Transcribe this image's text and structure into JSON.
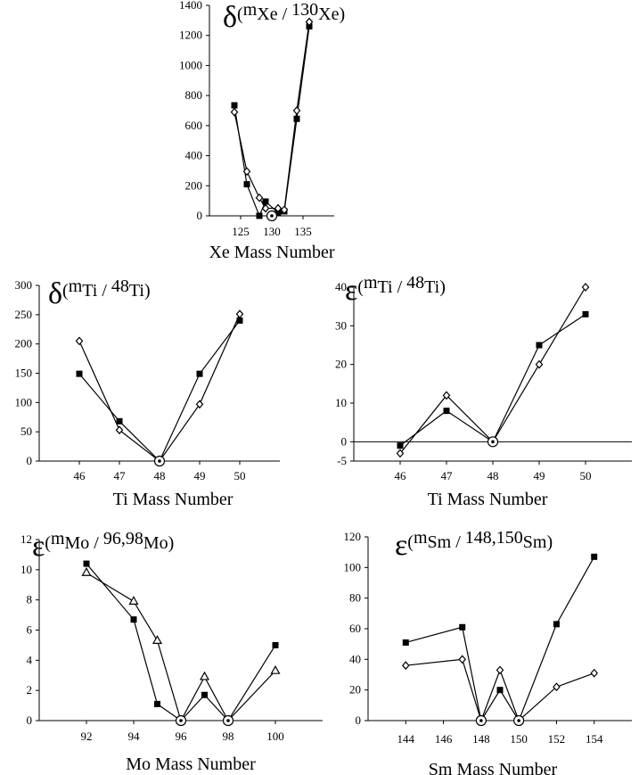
{
  "charts": [
    {
      "id": "xe",
      "type": "line",
      "title_symbol": "δ",
      "title_parts": [
        "(",
        "m",
        "Xe / ",
        "130",
        "Xe)"
      ],
      "xlabel": "Xe Mass Number",
      "xlim": [
        120,
        140
      ],
      "ylim": [
        0,
        1400
      ],
      "xticks": [
        125,
        130,
        135
      ],
      "yticks": [
        0,
        200,
        400,
        600,
        800,
        1000,
        1200,
        1400
      ],
      "reference_x": 130,
      "series": [
        {
          "marker": "square",
          "x": [
            124,
            126,
            128,
            129,
            131,
            132,
            134,
            136
          ],
          "y": [
            735,
            210,
            0,
            95,
            20,
            30,
            645,
            1260
          ]
        },
        {
          "marker": "diamond",
          "x": [
            124,
            126,
            128,
            129,
            131,
            132,
            134,
            136
          ],
          "y": [
            690,
            295,
            120,
            50,
            50,
            40,
            700,
            1290
          ]
        }
      ]
    },
    {
      "id": "ti_delta",
      "type": "line",
      "title_symbol": "δ",
      "title_parts": [
        "(",
        "m",
        "Ti / ",
        "48",
        "Ti)"
      ],
      "xlabel": "Ti Mass Number",
      "xlim": [
        45,
        51
      ],
      "ylim": [
        0,
        300
      ],
      "xticks": [
        46,
        47,
        48,
        49,
        50
      ],
      "yticks": [
        0,
        50,
        100,
        150,
        200,
        250,
        300
      ],
      "reference_x": 48,
      "series": [
        {
          "marker": "square",
          "x": [
            46,
            47,
            48,
            49,
            50
          ],
          "y": [
            149,
            68,
            0,
            149,
            240
          ]
        },
        {
          "marker": "diamond",
          "x": [
            46,
            47,
            48,
            49,
            50
          ],
          "y": [
            205,
            53,
            0,
            97,
            251
          ]
        }
      ]
    },
    {
      "id": "ti_eps",
      "type": "line",
      "title_symbol": "ε",
      "title_parts": [
        "(",
        "m",
        "Ti / ",
        "48",
        "Ti)"
      ],
      "xlabel": "Ti Mass Number",
      "xlim": [
        45,
        51
      ],
      "ylim": [
        -5,
        40
      ],
      "xticks": [
        46,
        47,
        48,
        49,
        50
      ],
      "yticks": [
        -5,
        0,
        10,
        20,
        30,
        40
      ],
      "zero_line": true,
      "reference_x": 48,
      "series": [
        {
          "marker": "square",
          "x": [
            46,
            47,
            48,
            49,
            50
          ],
          "y": [
            -1,
            8,
            0,
            25,
            33
          ]
        },
        {
          "marker": "diamond",
          "x": [
            46,
            47,
            48,
            49,
            50
          ],
          "y": [
            -3,
            12,
            0,
            20,
            40
          ]
        }
      ]
    },
    {
      "id": "mo",
      "type": "line",
      "title_symbol": "ε",
      "title_parts": [
        "(",
        "m",
        "Mo / ",
        "96,98",
        "Mo)"
      ],
      "xlabel": "Mo Mass Number",
      "xlim": [
        90,
        102
      ],
      "ylim": [
        0,
        12
      ],
      "xticks": [
        92,
        94,
        96,
        98,
        100
      ],
      "yticks": [
        0,
        2,
        4,
        6,
        8,
        10,
        12
      ],
      "reference_x": [
        96,
        98
      ],
      "series": [
        {
          "marker": "square",
          "x": [
            92,
            94,
            95,
            96,
            97,
            98,
            100
          ],
          "y": [
            10.4,
            6.7,
            1.1,
            0,
            1.7,
            0,
            5.0
          ]
        },
        {
          "marker": "triangle",
          "x": [
            92,
            94,
            95,
            96,
            97,
            98,
            100
          ],
          "y": [
            9.8,
            7.9,
            5.3,
            0,
            2.9,
            0,
            3.3
          ]
        }
      ]
    },
    {
      "id": "sm",
      "type": "line",
      "title_symbol": "ε",
      "title_parts": [
        "(",
        "m",
        "Sm / ",
        "148,150",
        "Sm)"
      ],
      "xlabel": "Sm Mass Number",
      "xlim": [
        142,
        156
      ],
      "ylim": [
        0,
        120
      ],
      "xticks": [
        144,
        146,
        148,
        150,
        152,
        154
      ],
      "yticks": [
        0,
        20,
        40,
        60,
        80,
        100,
        120
      ],
      "reference_x": [
        148,
        150
      ],
      "series": [
        {
          "marker": "square",
          "x": [
            144,
            147,
            148,
            149,
            150,
            152,
            154
          ],
          "y": [
            51,
            61,
            0,
            20,
            0,
            63,
            107
          ]
        },
        {
          "marker": "diamond",
          "x": [
            144,
            147,
            148,
            149,
            150,
            152,
            154
          ],
          "y": [
            36,
            40,
            0,
            33,
            0,
            22,
            31
          ]
        }
      ]
    }
  ]
}
